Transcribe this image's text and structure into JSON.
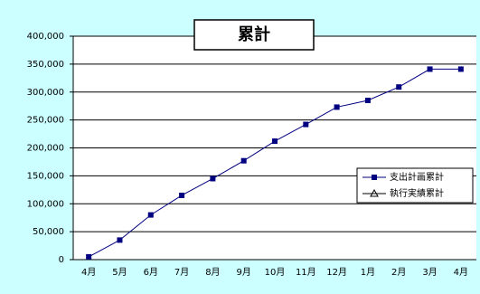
{
  "chart_data": {
    "type": "line",
    "title": "累計",
    "categories": [
      "4月",
      "5月",
      "6月",
      "7月",
      "8月",
      "9月",
      "10月",
      "11月",
      "12月",
      "1月",
      "2月",
      "3月",
      "4月"
    ],
    "series": [
      {
        "name": "支出計画累計",
        "color": "#000080",
        "marker": "square",
        "values": [
          5000,
          35000,
          80000,
          115000,
          145000,
          177000,
          212000,
          242000,
          273000,
          285000,
          309000,
          341000,
          341000
        ]
      },
      {
        "name": "執行実績累計",
        "color": "#000000",
        "marker": "triangle",
        "values": [
          null,
          null,
          null,
          null,
          null,
          null,
          null,
          null,
          null,
          null,
          null,
          null,
          null
        ]
      }
    ],
    "ylim": [
      0,
      400000
    ],
    "yticks": [
      0,
      {
        "value": 50000,
        "label": "50,000"
      },
      {
        "value": 100000,
        "label": "100,000"
      },
      {
        "value": 150000,
        "label": "150,000"
      },
      {
        "value": 200000,
        "label": "200,000"
      },
      {
        "value": 250000,
        "label": "250,000"
      },
      {
        "value": 300000,
        "label": "300,000"
      },
      {
        "value": 350000,
        "label": "350,000"
      },
      {
        "value": 400000,
        "label": "400,000"
      }
    ],
    "grid": true,
    "legend": "right"
  }
}
